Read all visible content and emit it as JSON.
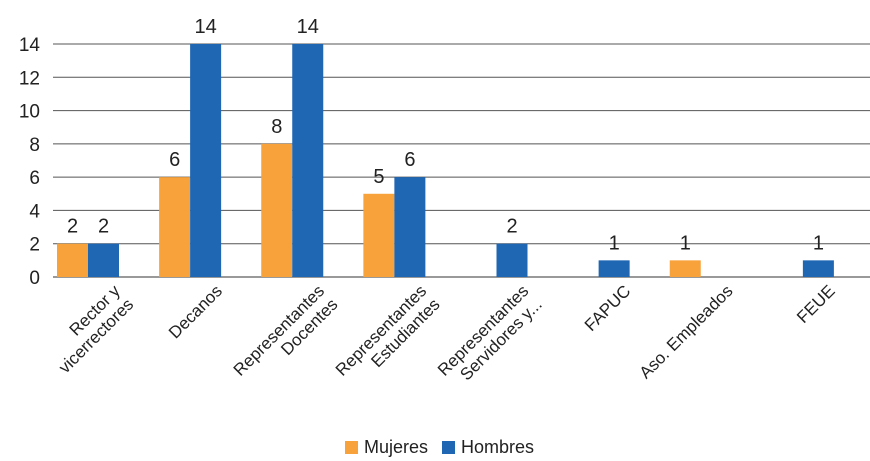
{
  "chart_data": {
    "type": "bar",
    "categories": [
      [
        "Rector y",
        "vicerrectores"
      ],
      [
        "Decanos"
      ],
      [
        "Representantes",
        "Docentes"
      ],
      [
        "Representantes",
        "Estudiantes"
      ],
      [
        "Representantes",
        "Servidores y..."
      ],
      [
        "FAPUC"
      ],
      [
        "Aso. Empleados"
      ],
      [
        "FEUE"
      ]
    ],
    "series": [
      {
        "name": "Mujeres",
        "color": "#F7A23B",
        "values": [
          2,
          6,
          8,
          5,
          null,
          null,
          1,
          null
        ]
      },
      {
        "name": "Hombres",
        "color": "#1F66B3",
        "values": [
          2,
          14,
          14,
          6,
          2,
          1,
          null,
          1
        ]
      }
    ],
    "yticks": [
      0,
      2,
      4,
      6,
      8,
      10,
      12,
      14
    ],
    "ylim": [
      0,
      14
    ],
    "grid": true,
    "legend_position": "bottom"
  }
}
